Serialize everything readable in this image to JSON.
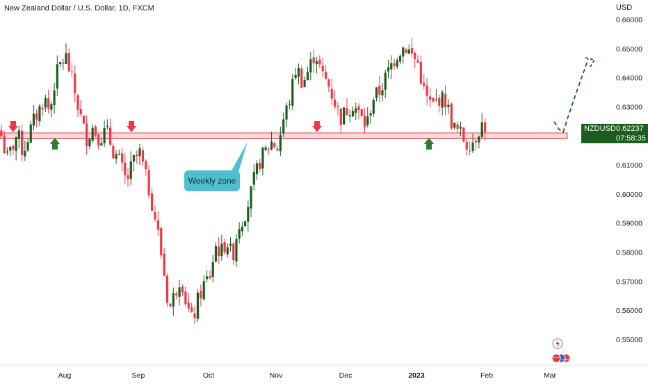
{
  "chart_title": "New Zealand Dollar / U.S. Dollar, 1D, FXCM",
  "currency_label": "USD",
  "symbol": "NZDUSD",
  "last_price": "0.62237",
  "countdown": "07:58:35",
  "annotation": "Weekly zone",
  "colors": {
    "up": "#1b5e20",
    "down": "#f23645",
    "zone_fill": "#f8bcc2",
    "zone_line": "#e53945",
    "arrow_down": "#f23645",
    "arrow_up": "#2e7d32",
    "projection": "#1b5e20",
    "bubble": "#4fbfcf"
  },
  "icons": [
    "lightning-icon",
    "flags-icon"
  ],
  "chart_data": {
    "type": "candlestick",
    "title": "New Zealand Dollar / U.S. Dollar, 1D, FXCM",
    "ylabel": "USD",
    "ylim": [
      0.545,
      0.665
    ],
    "y_ticks": [
      "0.66000",
      "0.65000",
      "0.64000",
      "0.63000",
      "0.62000",
      "0.61000",
      "0.60000",
      "0.59000",
      "0.58000",
      "0.57000",
      "0.56000",
      "0.55000"
    ],
    "x_ticks": [
      "Aug",
      "Sep",
      "Oct",
      "Nov",
      "Dec",
      "2023",
      "Feb",
      "Mar"
    ],
    "grid": false,
    "zone": [
      0.619,
      0.621
    ],
    "waypoints": [
      [
        0.62,
        0.612,
        0.616,
        0.621,
        0.614,
        0.62,
        0.625,
        0.629,
        0.633,
        0.628,
        0.64,
        0.645,
        0.647
      ],
      [
        0.647,
        0.638,
        0.628,
        0.619,
        0.623,
        0.619,
        0.622,
        0.615,
        0.611,
        0.604,
        0.611,
        0.614
      ],
      [
        0.614,
        0.606,
        0.598,
        0.588,
        0.575,
        0.56,
        0.566,
        0.572,
        0.562,
        0.556,
        0.564,
        0.569,
        0.572
      ],
      [
        0.572,
        0.582,
        0.58,
        0.584,
        0.578,
        0.589,
        0.592,
        0.598,
        0.606,
        0.612,
        0.615,
        0.618,
        0.616
      ],
      [
        0.616,
        0.626,
        0.633,
        0.644,
        0.638,
        0.643,
        0.649,
        0.641,
        0.638,
        0.632,
        0.626,
        0.629
      ],
      [
        0.629,
        0.631,
        0.627,
        0.623,
        0.633,
        0.635,
        0.64,
        0.645,
        0.649,
        0.651,
        0.648,
        0.645
      ],
      [
        0.645,
        0.634,
        0.63,
        0.633,
        0.632,
        0.623,
        0.621,
        0.617,
        0.6185,
        0.624,
        0.6224
      ]
    ],
    "projection": [
      [
        0.621,
        0.647
      ]
    ]
  }
}
